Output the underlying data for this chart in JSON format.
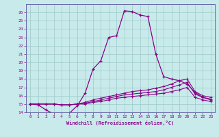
{
  "xlabel": "Windchill (Refroidissement éolien,°C)",
  "xlim": [
    -0.5,
    23.5
  ],
  "ylim": [
    14,
    27
  ],
  "yticks": [
    14,
    15,
    16,
    17,
    18,
    19,
    20,
    21,
    22,
    23,
    24,
    25,
    26
  ],
  "xticks": [
    0,
    1,
    2,
    3,
    4,
    5,
    6,
    7,
    8,
    9,
    10,
    11,
    12,
    13,
    14,
    15,
    16,
    17,
    18,
    19,
    20,
    21,
    22,
    23
  ],
  "bg_color": "#c8eaea",
  "line_color": "#880088",
  "grid_color": "#9ec8c8",
  "line1_x": [
    0,
    1,
    2,
    3,
    4,
    5,
    6,
    7,
    8,
    9,
    10,
    11,
    12,
    13,
    14,
    15,
    16,
    17,
    18,
    19,
    20,
    21,
    22,
    23
  ],
  "line1_y": [
    15.0,
    14.9,
    14.3,
    13.8,
    13.8,
    13.9,
    14.8,
    16.3,
    19.2,
    20.2,
    23.0,
    23.2,
    26.2,
    26.1,
    25.7,
    25.5,
    21.0,
    18.3,
    18.0,
    17.8,
    17.4,
    16.4,
    15.8,
    15.5
  ],
  "line2_x": [
    0,
    1,
    2,
    3,
    4,
    5,
    6,
    7,
    8,
    9,
    10,
    11,
    12,
    13,
    14,
    15,
    16,
    17,
    18,
    19,
    20,
    21,
    22,
    23
  ],
  "line2_y": [
    15.0,
    15.0,
    15.0,
    15.0,
    14.9,
    14.9,
    15.0,
    15.2,
    15.5,
    15.7,
    15.9,
    16.1,
    16.3,
    16.5,
    16.6,
    16.7,
    16.9,
    17.1,
    17.4,
    17.8,
    18.0,
    16.5,
    16.0,
    15.8
  ],
  "line3_x": [
    0,
    1,
    2,
    3,
    4,
    5,
    6,
    7,
    8,
    9,
    10,
    11,
    12,
    13,
    14,
    15,
    16,
    17,
    18,
    19,
    20,
    21,
    22,
    23
  ],
  "line3_y": [
    15.0,
    15.0,
    15.0,
    15.0,
    14.9,
    14.9,
    15.0,
    15.1,
    15.3,
    15.5,
    15.7,
    15.9,
    16.1,
    16.2,
    16.3,
    16.4,
    16.5,
    16.7,
    17.0,
    17.3,
    17.6,
    16.2,
    15.8,
    15.6
  ],
  "line4_x": [
    0,
    1,
    2,
    3,
    4,
    5,
    6,
    7,
    8,
    9,
    10,
    11,
    12,
    13,
    14,
    15,
    16,
    17,
    18,
    19,
    20,
    21,
    22,
    23
  ],
  "line4_y": [
    15.0,
    15.0,
    15.0,
    15.0,
    14.9,
    14.9,
    15.0,
    15.0,
    15.2,
    15.3,
    15.5,
    15.7,
    15.8,
    15.9,
    16.0,
    16.1,
    16.2,
    16.3,
    16.5,
    16.7,
    17.0,
    15.8,
    15.5,
    15.3
  ]
}
